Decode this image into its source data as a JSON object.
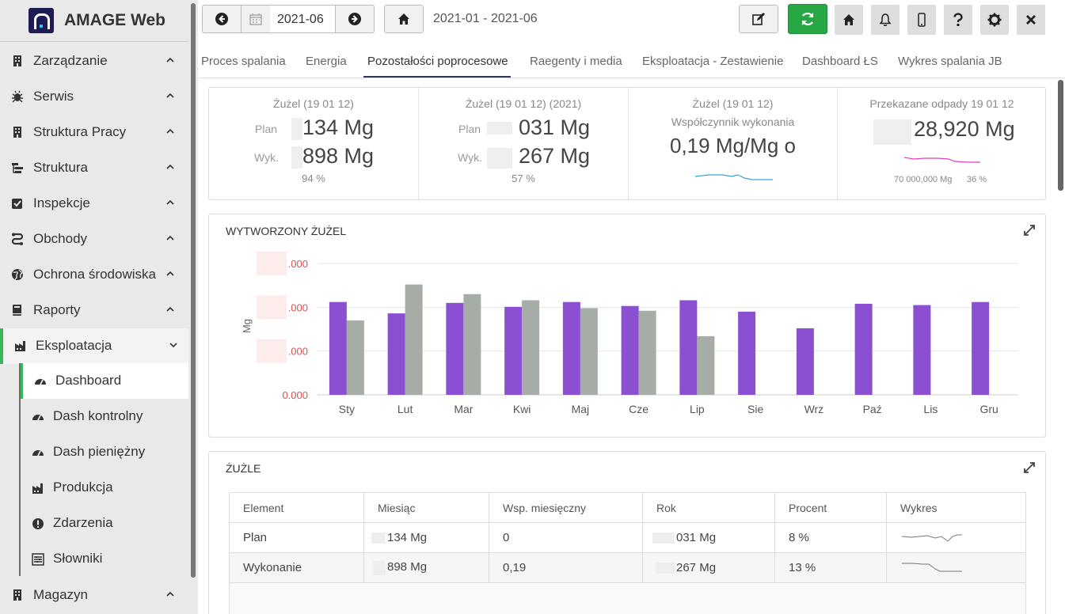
{
  "app": {
    "title": "AMAGE Web"
  },
  "sidebar": {
    "items": [
      {
        "label": "Zarządzanie",
        "icon": "building-icon"
      },
      {
        "label": "Serwis",
        "icon": "bug-icon"
      },
      {
        "label": "Struktura Pracy",
        "icon": "building-icon"
      },
      {
        "label": "Struktura",
        "icon": "tree-icon"
      },
      {
        "label": "Inspekcje",
        "icon": "checkbox-icon"
      },
      {
        "label": "Obchody",
        "icon": "route-icon"
      },
      {
        "label": "Ochrona środowiska",
        "icon": "globe-icon"
      },
      {
        "label": "Raporty",
        "icon": "book-icon"
      },
      {
        "label": "Eksploatacja",
        "icon": "industry-icon"
      },
      {
        "label": "Magazyn",
        "icon": "building-icon"
      }
    ],
    "subitems": [
      {
        "label": "Dashboard",
        "icon": "gauge-icon"
      },
      {
        "label": "Dash kontrolny",
        "icon": "gauge-icon"
      },
      {
        "label": "Dash pieniężny",
        "icon": "gauge-icon"
      },
      {
        "label": "Produkcja",
        "icon": "industry-icon"
      },
      {
        "label": "Zdarzenia",
        "icon": "alert-icon"
      },
      {
        "label": "Słowniki",
        "icon": "list-icon"
      }
    ]
  },
  "toolbar": {
    "date_value": "2021-06",
    "date_range": "2021-01 - 2021-06"
  },
  "tabs": [
    "Proces spalania",
    "Energia",
    "Pozostałości poprocesowe",
    "Raegenty i media",
    "Eksploatacja - Zestawienie",
    "Dashboard ŁS",
    "Wykres spalania JB"
  ],
  "active_tab": "Pozostałości poprocesowe",
  "kpi": {
    "c1": {
      "title": "Żużel (19 01 12)",
      "plan_label": "Plan",
      "plan": "134 Mg",
      "wyk_label": "Wyk.",
      "wyk": "898 Mg",
      "pct": "94 %"
    },
    "c2": {
      "title": "Żużel (19 01 12) (2021)",
      "plan_label": "Plan",
      "plan": "031 Mg",
      "wyk_label": "Wyk.",
      "wyk": "267 Mg",
      "pct": "57 %"
    },
    "c3": {
      "title": "Żużel (19 01 12)",
      "subtitle": "Współczynnik wykonania",
      "value": "0,19 Mg/Mg o"
    },
    "c4": {
      "title": "Przekazane odpady 19 01 12",
      "value": "28,920 Mg",
      "foot_left": "70 000,000 Mg",
      "foot_right": "36 %"
    }
  },
  "colors": {
    "purple": "#8b4fd1",
    "gray": "#a5ada6",
    "green": "#28a745",
    "spark_blue": "#3aa0d8",
    "spark_pink": "#e040b8"
  },
  "panel1": {
    "title": "WYTWORZONY ŻUŻEL"
  },
  "chart_data": {
    "type": "bar",
    "title": "WYTWORZONY ŻUŻEL",
    "ylabel": "Mg",
    "xlabel": "",
    "y_tick_labels": [
      ".000",
      ".000",
      ".000",
      "0.000"
    ],
    "categories": [
      "Sty",
      "Lut",
      "Mar",
      "Kwi",
      "Maj",
      "Cze",
      "Lip",
      "Sie",
      "Wrz",
      "Paź",
      "Lis",
      "Gru"
    ],
    "ylim": [
      0,
      3
    ],
    "grid": true,
    "series": [
      {
        "values": [
          2.12,
          1.86,
          2.1,
          2.01,
          2.12,
          2.03,
          2.16,
          1.9,
          1.52,
          2.08,
          2.05,
          2.12
        ]
      },
      {
        "values": [
          1.7,
          2.52,
          2.3,
          2.16,
          1.98,
          1.92,
          1.34,
          null,
          null,
          null,
          null,
          null
        ]
      }
    ]
  },
  "panel2": {
    "title": "ŻUŻLE",
    "headers": [
      "Element",
      "Miesiąc",
      "Wsp. miesięczny",
      "Rok",
      "Procent",
      "Wykres"
    ],
    "rows": [
      {
        "element": "Plan",
        "miesiac": "134 Mg",
        "wsp": "0",
        "rok": "031 Mg",
        "procent": "8 %"
      },
      {
        "element": "Wykonanie",
        "miesiac": "898 Mg",
        "wsp": "0,19",
        "rok": "267 Mg",
        "procent": "13 %"
      }
    ]
  }
}
